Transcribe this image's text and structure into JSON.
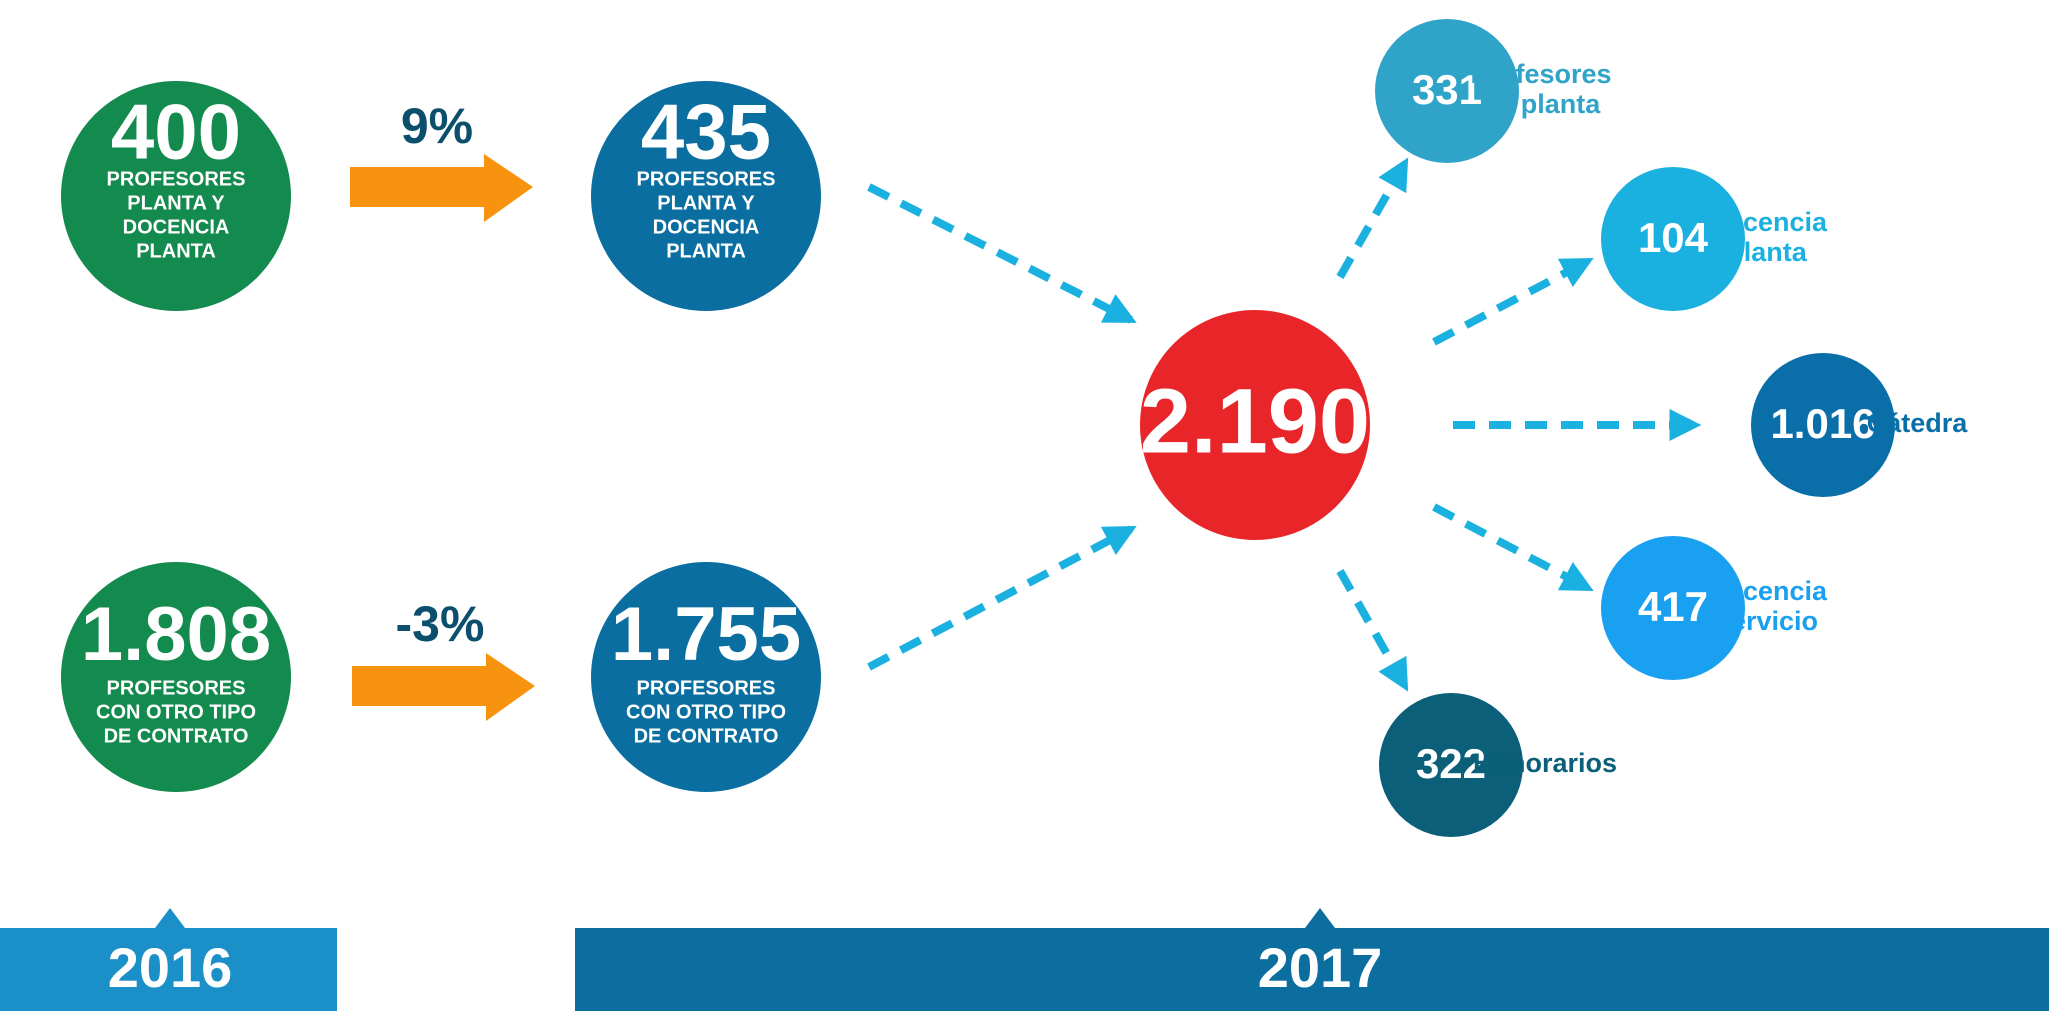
{
  "nodes_2016": [
    {
      "value": "400",
      "label": [
        "PROFESORES",
        "PLANTA Y",
        "DOCENCIA",
        "PLANTA"
      ]
    },
    {
      "value": "1.808",
      "label": [
        "PROFESORES",
        "CON OTRO TIPO",
        "DE CONTRATO"
      ]
    }
  ],
  "changes": [
    "9%",
    "-3%"
  ],
  "nodes_2017": [
    {
      "value": "435",
      "label": [
        "PROFESORES",
        "PLANTA Y",
        "DOCENCIA",
        "PLANTA"
      ]
    },
    {
      "value": "1.755",
      "label": [
        "PROFESORES",
        "CON OTRO TIPO",
        "DE CONTRATO"
      ]
    }
  ],
  "total": "2.190",
  "breakdown": [
    {
      "value": "331",
      "label": [
        "Profesores",
        "de planta"
      ]
    },
    {
      "value": "104",
      "label": [
        "Docencia",
        "planta"
      ]
    },
    {
      "value": "1.016",
      "label": [
        "Cátedra"
      ]
    },
    {
      "value": "417",
      "label": [
        "Docencia",
        "servicio"
      ]
    },
    {
      "value": "322",
      "label": [
        "Honorarios"
      ]
    }
  ],
  "years": [
    "2016",
    "2017"
  ]
}
